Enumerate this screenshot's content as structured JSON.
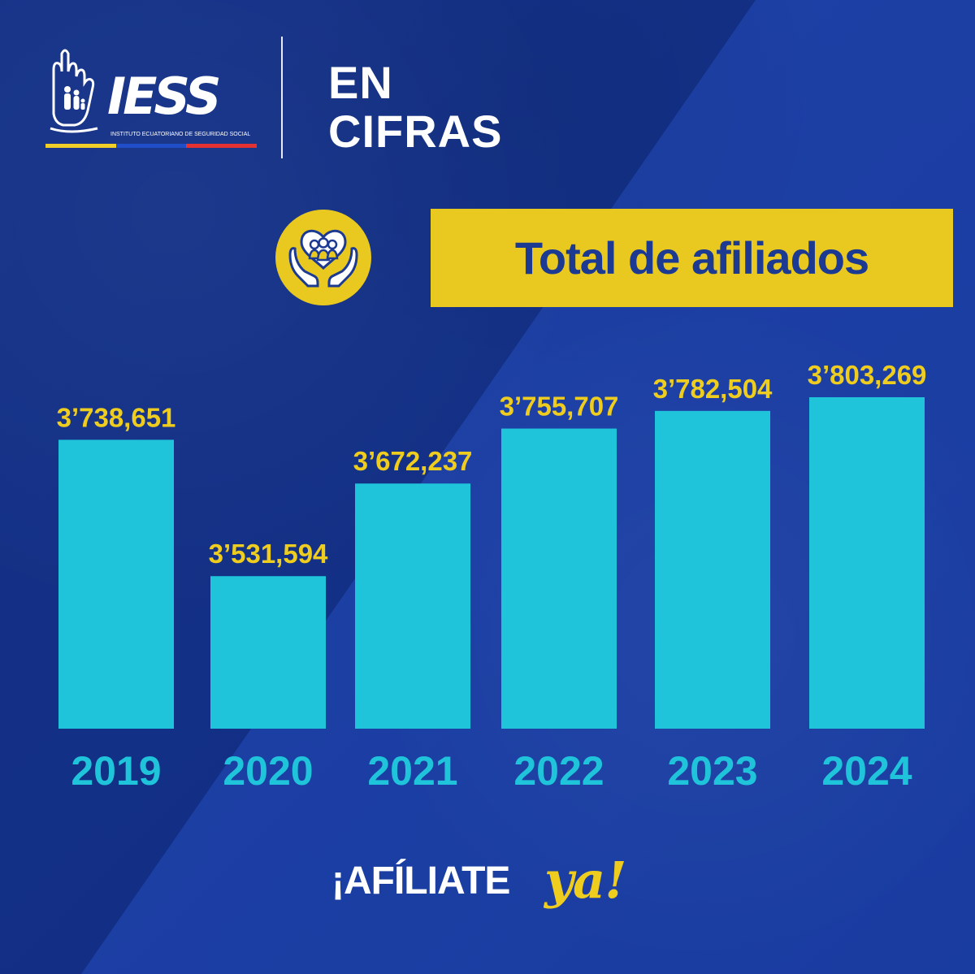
{
  "branding": {
    "logo_wordmark": "IESS",
    "logo_subtitle": "INSTITUTO ECUATORIANO DE SEGURIDAD SOCIAL",
    "headline_line1": "EN",
    "headline_line2": "CIFRAS"
  },
  "chart_header": {
    "icon": "hands-family-heart-icon",
    "title": "Total de afiliados"
  },
  "footer": {
    "cta_main": "¡AFÍLIATE",
    "cta_script": "ya!"
  },
  "colors": {
    "background": "#102e86",
    "background_accent": "#1a3ea6",
    "bar_fill": "#1fc4da",
    "value_label": "#efcd1f",
    "title_box": "#e9c91f",
    "title_text": "#1c3a92"
  },
  "chart_data": {
    "type": "bar",
    "title": "Total de afiliados",
    "categories": [
      "2019",
      "2020",
      "2021",
      "2022",
      "2023",
      "2024"
    ],
    "values": [
      3738651,
      3531594,
      3672237,
      3755707,
      3782504,
      3803269
    ],
    "value_labels": [
      "3’738,651",
      "3’531,594",
      "3’672,237",
      "3’755,707",
      "3’782,504",
      "3’803,269"
    ],
    "xlabel": "",
    "ylabel": "",
    "ylim": [
      3300000,
      3830000
    ],
    "grid": false,
    "legend": "none"
  }
}
